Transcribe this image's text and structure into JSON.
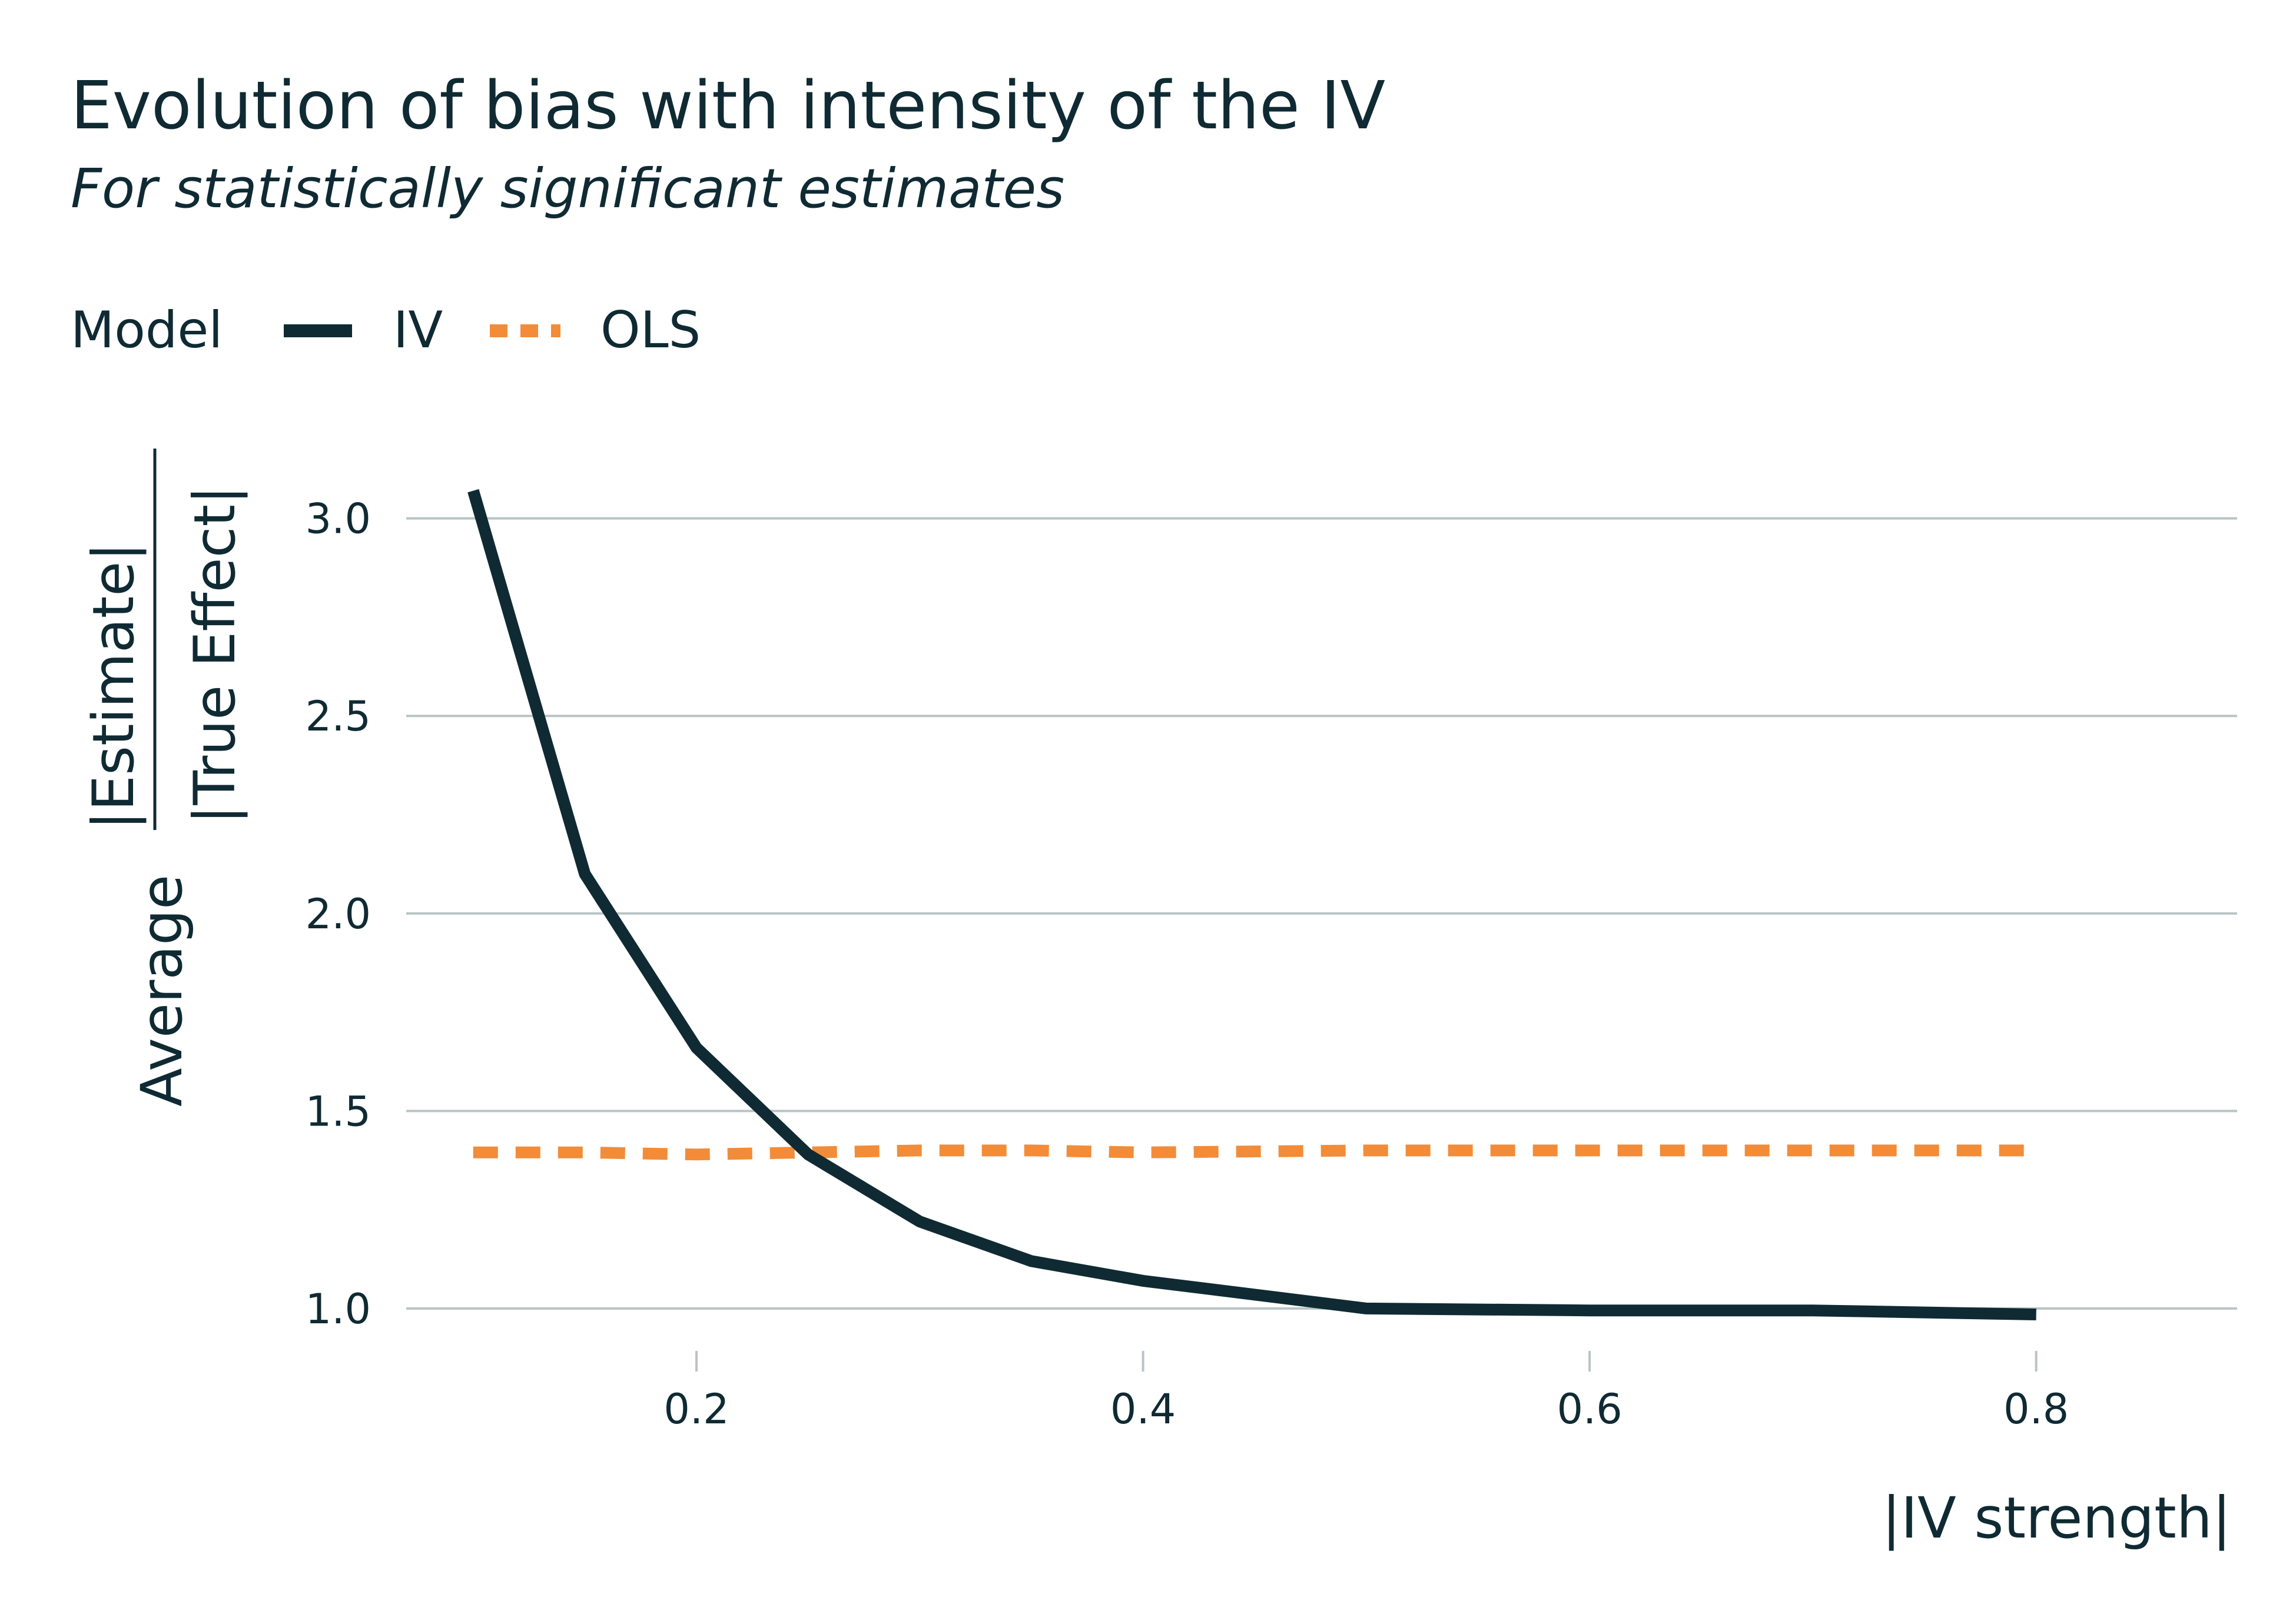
{
  "chart_data": {
    "type": "line",
    "title": "Evolution of bias with intensity of the IV",
    "subtitle": "For statistically significant estimates",
    "legend": {
      "title": "Model",
      "position": "top-left"
    },
    "xlabel": "|IV strength|",
    "ylabel": {
      "prefix": "Average",
      "numerator": "|Estimate|",
      "denominator": "|True Effect|"
    },
    "xlim": [
      0.07,
      0.89
    ],
    "ylim": [
      0.9,
      3.15
    ],
    "xticks": [
      {
        "value": 0.2,
        "label": "0.2"
      },
      {
        "value": 0.4,
        "label": "0.4"
      },
      {
        "value": 0.6,
        "label": "0.6"
      },
      {
        "value": 0.8,
        "label": "0.8"
      }
    ],
    "yticks": [
      {
        "value": 1.0,
        "label": "1.0"
      },
      {
        "value": 1.5,
        "label": "1.5"
      },
      {
        "value": 2.0,
        "label": "2.0"
      },
      {
        "value": 2.5,
        "label": "2.5"
      },
      {
        "value": 3.0,
        "label": "3.0"
      }
    ],
    "grid": "horizontal",
    "series": [
      {
        "name": "IV",
        "color": "#0f2a33",
        "style": "solid",
        "x": [
          0.1,
          0.15,
          0.2,
          0.25,
          0.3,
          0.35,
          0.4,
          0.5,
          0.6,
          0.7,
          0.8
        ],
        "values": [
          3.07,
          2.1,
          1.66,
          1.39,
          1.22,
          1.12,
          1.07,
          1.0,
          0.995,
          0.995,
          0.985
        ]
      },
      {
        "name": "OLS",
        "color": "#f28c38",
        "style": "dashed",
        "x": [
          0.1,
          0.15,
          0.2,
          0.25,
          0.3,
          0.35,
          0.4,
          0.5,
          0.6,
          0.7,
          0.8
        ],
        "values": [
          1.395,
          1.395,
          1.39,
          1.395,
          1.4,
          1.4,
          1.395,
          1.4,
          1.4,
          1.4,
          1.4
        ]
      }
    ]
  }
}
